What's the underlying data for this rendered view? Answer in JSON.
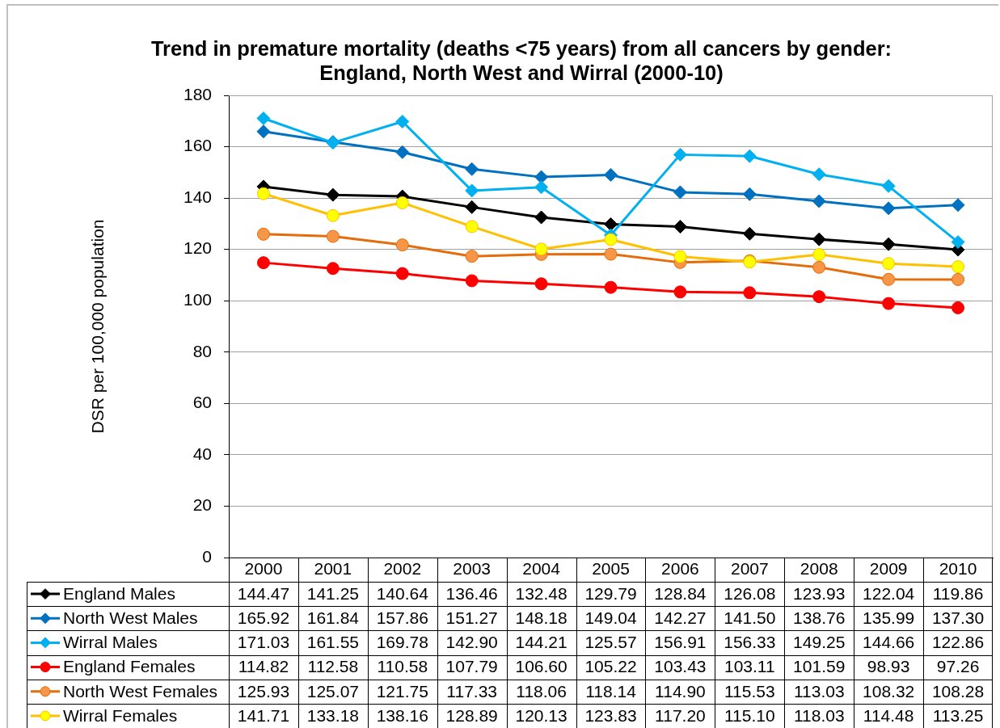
{
  "chart_data": {
    "type": "line",
    "title": "Trend in premature mortality (deaths <75 years) from all cancers by gender:\nEngland, North West and Wirral (2000-10)",
    "ylabel": "DSR per 100,000 population",
    "categories": [
      "2000",
      "2001",
      "2002",
      "2003",
      "2004",
      "2005",
      "2006",
      "2007",
      "2008",
      "2009",
      "2010"
    ],
    "ylim": [
      0,
      180
    ],
    "yticks": [
      0,
      20,
      40,
      60,
      80,
      100,
      120,
      140,
      160,
      180
    ],
    "grid": "y",
    "legend": "bottom left",
    "line_style": "solid",
    "series": [
      {
        "name": "England Males",
        "color": "#000000",
        "marker": "diamond",
        "values": [
          144.47,
          141.25,
          140.64,
          136.46,
          132.48,
          129.79,
          128.84,
          126.08,
          123.93,
          122.04,
          119.86
        ],
        "value_labels": [
          "144.47",
          "141.25",
          "140.64",
          "136.46",
          "132.48",
          "129.79",
          "128.84",
          "126.08",
          "123.93",
          "122.04",
          "119.86"
        ]
      },
      {
        "name": "North West Males",
        "color": "#0070c0",
        "marker": "diamond",
        "values": [
          165.92,
          161.84,
          157.86,
          151.27,
          148.18,
          149.04,
          142.27,
          141.5,
          138.76,
          135.99,
          137.3
        ],
        "value_labels": [
          "165.92",
          "161.84",
          "157.86",
          "151.27",
          "148.18",
          "149.04",
          "142.27",
          "141.50",
          "138.76",
          "135.99",
          "137.30"
        ]
      },
      {
        "name": "Wirral Males",
        "color": "#00b0f0",
        "marker": "diamond",
        "values": [
          171.03,
          161.55,
          169.78,
          142.9,
          144.21,
          125.57,
          156.91,
          156.33,
          149.25,
          144.66,
          122.86
        ],
        "value_labels": [
          "171.03",
          "161.55",
          "169.78",
          "142.90",
          "144.21",
          "125.57",
          "156.91",
          "156.33",
          "149.25",
          "144.66",
          "122.86"
        ]
      },
      {
        "name": "England Females",
        "color": "#ff0000",
        "marker": "circle",
        "values": [
          114.82,
          112.58,
          110.58,
          107.79,
          106.6,
          105.22,
          103.43,
          103.11,
          101.59,
          98.93,
          97.26
        ],
        "value_labels": [
          "114.82",
          "112.58",
          "110.58",
          "107.79",
          "106.60",
          "105.22",
          "103.43",
          "103.11",
          "101.59",
          "98.93",
          "97.26"
        ]
      },
      {
        "name": "North West Females",
        "color": "#e46c0a",
        "marker": "circle",
        "colors": [
          "#f79646",
          "#f79646",
          "#f79646",
          "#f79646",
          "#f79646",
          "#f79646",
          "#f79646",
          "#f79646",
          "#f79646",
          "#f79646",
          "#f79646"
        ],
        "values": [
          125.93,
          125.07,
          121.75,
          117.33,
          118.06,
          118.14,
          114.9,
          115.53,
          113.03,
          108.32,
          108.28
        ],
        "value_labels": [
          "125.93",
          "125.07",
          "121.75",
          "117.33",
          "118.06",
          "118.14",
          "114.90",
          "115.53",
          "113.03",
          "108.32",
          "108.28"
        ]
      },
      {
        "name": "Wirral Females",
        "color": "#ffc000",
        "marker": "circle",
        "colors": [
          "#ffff00",
          "#ffff00",
          "#ffff00",
          "#ffff00",
          "#ffff00",
          "#ffff00",
          "#ffff00",
          "#ffff00",
          "#ffff00",
          "#ffff00",
          "#ffff00"
        ],
        "values": [
          141.71,
          133.18,
          138.16,
          128.89,
          120.13,
          123.83,
          117.2,
          115.1,
          118.03,
          114.48,
          113.25
        ],
        "value_labels": [
          "141.71",
          "133.18",
          "138.16",
          "128.89",
          "120.13",
          "123.83",
          "117.20",
          "115.10",
          "118.03",
          "114.48",
          "113.25"
        ]
      }
    ]
  }
}
